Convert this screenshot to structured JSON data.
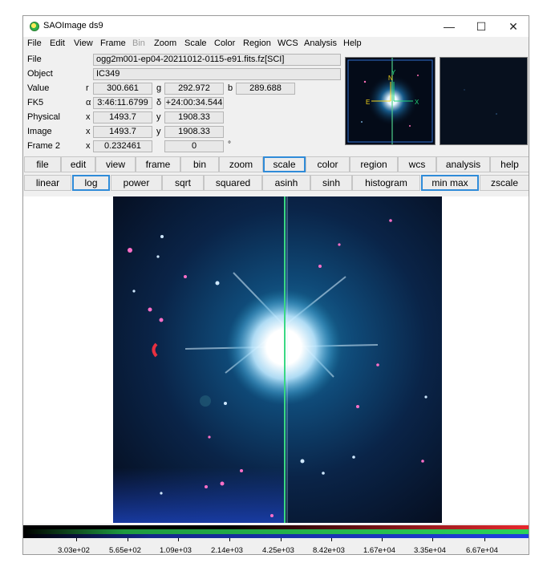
{
  "window": {
    "title": "SAOImage ds9",
    "controls": {
      "minimize": "—",
      "maximize": "☐",
      "close": "✕"
    }
  },
  "menubar": [
    "File",
    "Edit",
    "View",
    "Frame",
    "Bin",
    "Zoom",
    "Scale",
    "Color",
    "Region",
    "WCS",
    "Analysis",
    "Help"
  ],
  "info": {
    "file_label": "File",
    "file_value": "ogg2m001-ep04-20211012-0115-e91.fits.fz[SCI]",
    "object_label": "Object",
    "object_value": "IC349",
    "value_label": "Value",
    "value_r_label": "r",
    "value_r": "300.661",
    "value_g_label": "g",
    "value_g": "292.972",
    "value_b_label": "b",
    "value_b": "289.688",
    "fk5_label": "FK5",
    "fk5_alpha_symbol": "α",
    "fk5_ra": "3:46:11.6799",
    "fk5_delta_symbol": "δ",
    "fk5_dec": "+24:00:34.544",
    "physical_label": "Physical",
    "physical_x_label": "x",
    "physical_x": "1493.7",
    "physical_y_label": "y",
    "physical_y": "1908.33",
    "image_label": "Image",
    "image_x_label": "x",
    "image_x": "1493.7",
    "image_y_label": "y",
    "image_y": "1908.33",
    "frame_label": "Frame 2",
    "frame_x_label": "x",
    "frame_zoom": "0.232461",
    "frame_angle": "0",
    "frame_angle_unit": "°"
  },
  "panner": {
    "n_label": "N",
    "e_label": "E",
    "y_label": "Y",
    "x_label": "X"
  },
  "buttonbar": {
    "main": [
      "file",
      "edit",
      "view",
      "frame",
      "bin",
      "zoom",
      "scale",
      "color",
      "region",
      "wcs",
      "analysis",
      "help"
    ],
    "main_active": "scale",
    "scale": [
      "linear",
      "log",
      "power",
      "sqrt",
      "squared",
      "asinh",
      "sinh",
      "histogram",
      "min max",
      "zscale"
    ],
    "scale_active": [
      "log",
      "min max"
    ]
  },
  "colorbar": {
    "ticks": [
      "3.03e+02",
      "5.65e+02",
      "1.09e+03",
      "2.14e+03",
      "4.25e+03",
      "8.42e+03",
      "1.67e+04",
      "3.35e+04",
      "6.67e+04"
    ],
    "colors": {
      "red": "#e8282d",
      "green": "#2cd25a",
      "blue": "#2040e0"
    }
  },
  "colors": {
    "accent": "#2f8bd8",
    "window_bg": "#f0f0f0",
    "field_bg": "#e8e8e8"
  }
}
